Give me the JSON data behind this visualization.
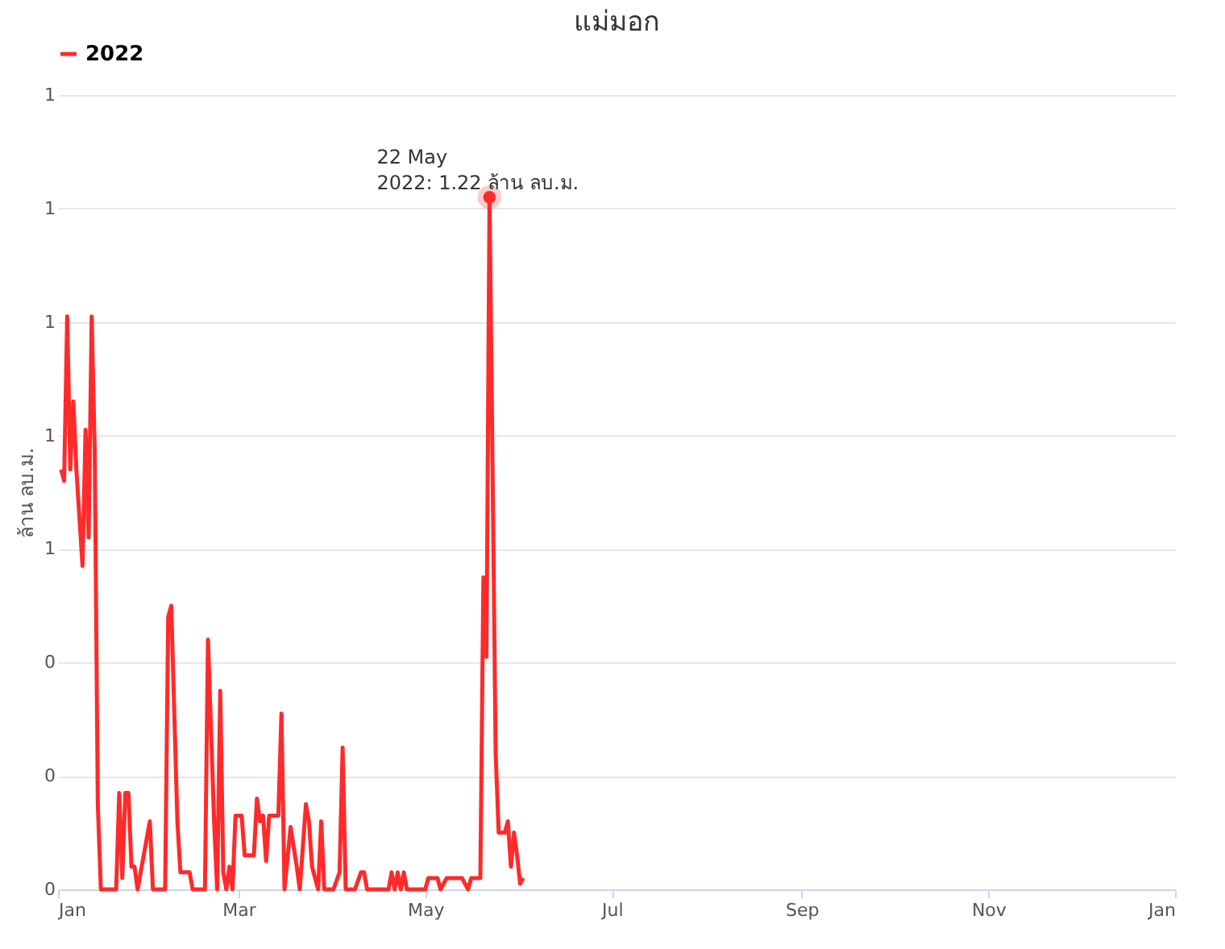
{
  "chart_data": {
    "type": "line",
    "title": "แม่มอก",
    "ylabel": "ล้าน ลบ.ม.",
    "legend": "top",
    "grid": "y",
    "marker": "none",
    "line_style": "solid",
    "xlim": [
      "2022-01-01",
      "2023-01-01"
    ],
    "xticks": [
      {
        "value": "2022-01-01",
        "label": "Jan"
      },
      {
        "value": "2022-03-01",
        "label": "Mar"
      },
      {
        "value": "2022-05-01",
        "label": "May"
      },
      {
        "value": "2022-07-01",
        "label": "Jul"
      },
      {
        "value": "2022-09-01",
        "label": "Sep"
      },
      {
        "value": "2022-11-01",
        "label": "Nov"
      },
      {
        "value": "2023-01-01",
        "label": "Jan"
      }
    ],
    "ylim": [
      0,
      1.4
    ],
    "yticks": [
      0,
      {
        "value": 0.2,
        "label": "0"
      },
      {
        "value": 0.4,
        "label": "0"
      },
      {
        "value": 0.6,
        "label": "1"
      },
      {
        "value": 0.8,
        "label": "1"
      },
      {
        "value": 1.0,
        "label": "1"
      },
      {
        "value": 1.2,
        "label": "1"
      },
      {
        "value": 1.4,
        "label": "1"
      }
    ],
    "x": [
      "2022-01-02",
      "2022-01-03",
      "2022-01-04",
      "2022-01-05",
      "2022-01-06",
      "2022-01-07",
      "2022-01-09",
      "2022-01-10",
      "2022-01-11",
      "2022-01-12",
      "2022-01-13",
      "2022-01-14",
      "2022-01-15",
      "2022-01-20",
      "2022-01-21",
      "2022-01-22",
      "2022-01-23",
      "2022-01-24",
      "2022-01-25",
      "2022-01-26",
      "2022-01-27",
      "2022-01-30",
      "2022-01-31",
      "2022-02-01",
      "2022-02-05",
      "2022-02-06",
      "2022-02-07",
      "2022-02-09",
      "2022-02-10",
      "2022-02-13",
      "2022-02-14",
      "2022-02-18",
      "2022-02-19",
      "2022-02-21",
      "2022-02-22",
      "2022-02-23",
      "2022-02-24",
      "2022-02-25",
      "2022-02-26",
      "2022-02-27",
      "2022-02-28",
      "2022-03-02",
      "2022-03-03",
      "2022-03-06",
      "2022-03-07",
      "2022-03-08",
      "2022-03-09",
      "2022-03-10",
      "2022-03-11",
      "2022-03-14",
      "2022-03-15",
      "2022-03-16",
      "2022-03-18",
      "2022-03-20",
      "2022-03-21",
      "2022-03-23",
      "2022-03-24",
      "2022-03-25",
      "2022-03-27",
      "2022-03-28",
      "2022-03-29",
      "2022-04-01",
      "2022-04-03",
      "2022-04-04",
      "2022-04-05",
      "2022-04-08",
      "2022-04-10",
      "2022-04-11",
      "2022-04-12",
      "2022-04-19",
      "2022-04-20",
      "2022-04-21",
      "2022-04-22",
      "2022-04-23",
      "2022-04-24",
      "2022-04-25",
      "2022-05-01",
      "2022-05-02",
      "2022-05-05",
      "2022-05-06",
      "2022-05-08",
      "2022-05-13",
      "2022-05-15",
      "2022-05-16",
      "2022-05-19",
      "2022-05-20",
      "2022-05-21",
      "2022-05-22",
      "2022-05-23",
      "2022-05-24",
      "2022-05-25",
      "2022-05-27",
      "2022-05-28",
      "2022-05-29",
      "2022-05-30",
      "2022-05-31",
      "2022-06-01",
      "2022-06-02"
    ],
    "series": [
      {
        "name": "2022",
        "color": "#ff2a2a",
        "values": [
          0.74,
          0.72,
          1.01,
          0.74,
          0.86,
          0.74,
          0.57,
          0.81,
          0.62,
          1.01,
          0.77,
          0.15,
          0,
          0,
          0.17,
          0.02,
          0.17,
          0.17,
          0.04,
          0.04,
          0,
          0.09,
          0.12,
          0,
          0,
          0.48,
          0.5,
          0.12,
          0.03,
          0.03,
          0,
          0,
          0.44,
          0.12,
          0,
          0.35,
          0.03,
          0,
          0.04,
          0,
          0.13,
          0.13,
          0.06,
          0.06,
          0.16,
          0.12,
          0.13,
          0.05,
          0.13,
          0.13,
          0.31,
          0,
          0.11,
          0.04,
          0,
          0.15,
          0.12,
          0.04,
          0,
          0.12,
          0,
          0,
          0.03,
          0.25,
          0,
          0,
          0.03,
          0.03,
          0,
          0,
          0.03,
          0,
          0.03,
          0,
          0.03,
          0,
          0,
          0.02,
          0.02,
          0,
          0.02,
          0.02,
          0,
          0.02,
          0.02,
          0.55,
          0.41,
          1.22,
          0.74,
          0.24,
          0.1,
          0.1,
          0.12,
          0.04,
          0.1,
          0.06,
          0.01,
          0.02
        ]
      }
    ],
    "annotations": [
      {
        "text": "22 May\n2022: 1.22 ล้าน ลบ.ม.",
        "x": "2022-05-22",
        "y": 1.22
      }
    ]
  }
}
